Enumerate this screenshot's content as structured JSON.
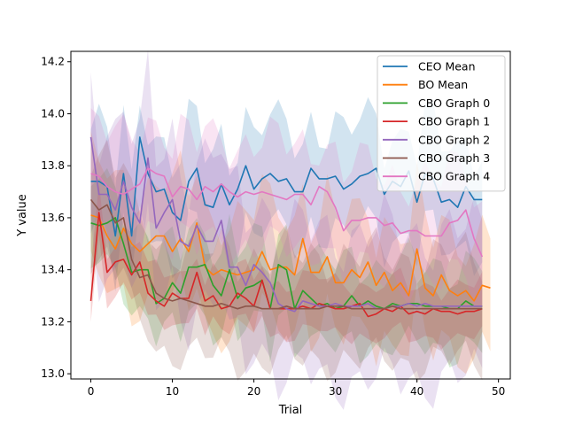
{
  "chart_data": {
    "type": "line",
    "title": "",
    "xlabel": "Trial",
    "ylabel": "Y value",
    "xlim": [
      -2.45,
      51.45
    ],
    "ylim": [
      12.98,
      14.24
    ],
    "xticks": [
      0,
      10,
      20,
      30,
      40,
      50
    ],
    "yticks": [
      13.0,
      13.2,
      13.4,
      13.6,
      13.8,
      14.0,
      14.2
    ],
    "ytick_labels": [
      "13.0",
      "13.2",
      "13.4",
      "13.6",
      "13.8",
      "14.0",
      "14.2"
    ],
    "grid": false,
    "legend_position": "upper right",
    "series": [
      {
        "name": "CEO Mean",
        "color": "#1f77b4",
        "x_start": 0,
        "values": [
          13.74,
          13.74,
          13.72,
          13.53,
          13.77,
          13.53,
          13.91,
          13.77,
          13.7,
          13.71,
          13.62,
          13.59,
          13.74,
          13.79,
          13.65,
          13.64,
          13.73,
          13.65,
          13.71,
          13.8,
          13.71,
          13.75,
          13.77,
          13.74,
          13.75,
          13.7,
          13.7,
          13.79,
          13.75,
          13.75,
          13.76,
          13.71,
          13.73,
          13.76,
          13.77,
          13.79,
          13.69,
          13.74,
          13.72,
          13.78,
          13.66,
          13.77,
          13.75,
          13.66,
          13.67,
          13.64,
          13.72,
          13.67,
          13.67
        ],
        "band_halfwidth": 0.2
      },
      {
        "name": "BO Mean",
        "color": "#ff7f0e",
        "x_start": 0,
        "values": [
          13.61,
          13.6,
          13.53,
          13.48,
          13.56,
          13.5,
          13.47,
          13.5,
          13.53,
          13.53,
          13.47,
          13.52,
          13.47,
          13.58,
          13.41,
          13.38,
          13.4,
          13.39,
          13.38,
          13.39,
          13.4,
          13.47,
          13.4,
          13.41,
          13.41,
          13.38,
          13.52,
          13.39,
          13.39,
          13.45,
          13.35,
          13.35,
          13.4,
          13.37,
          13.43,
          13.34,
          13.39,
          13.32,
          13.35,
          13.3,
          13.48,
          13.33,
          13.3,
          13.38,
          13.32,
          13.3,
          13.32,
          13.28,
          13.34,
          13.33
        ],
        "band_halfwidth": 0.22
      },
      {
        "name": "CBO Graph 0",
        "color": "#2ca02c",
        "x_start": 0,
        "values": [
          13.58,
          13.57,
          13.58,
          13.6,
          13.5,
          13.39,
          13.4,
          13.4,
          13.27,
          13.29,
          13.35,
          13.31,
          13.41,
          13.41,
          13.42,
          13.34,
          13.3,
          13.4,
          13.29,
          13.33,
          13.34,
          13.36,
          13.25,
          13.42,
          13.4,
          13.25,
          13.32,
          13.29,
          13.26,
          13.27,
          13.25,
          13.26,
          13.3,
          13.26,
          13.28,
          13.26,
          13.25,
          13.27,
          13.26,
          13.27,
          13.27,
          13.26,
          13.26,
          13.26,
          13.25,
          13.25,
          13.28,
          13.26,
          13.26
        ],
        "band_halfwidth": 0.16
      },
      {
        "name": "CBO Graph 1",
        "color": "#d62728",
        "x_start": 0,
        "values": [
          13.28,
          13.62,
          13.39,
          13.43,
          13.44,
          13.38,
          13.43,
          13.31,
          13.28,
          13.26,
          13.31,
          13.29,
          13.29,
          13.39,
          13.28,
          13.3,
          13.25,
          13.26,
          13.31,
          13.29,
          13.26,
          13.36,
          13.25,
          13.25,
          13.25,
          13.25,
          13.26,
          13.25,
          13.27,
          13.26,
          13.25,
          13.25,
          13.26,
          13.27,
          13.22,
          13.23,
          13.25,
          13.24,
          13.26,
          13.23,
          13.24,
          13.23,
          13.25,
          13.24,
          13.24,
          13.23,
          13.24,
          13.24,
          13.25
        ],
        "band_halfwidth": 0.1
      },
      {
        "name": "CBO Graph 2",
        "color": "#9467bd",
        "x_start": 0,
        "values": [
          13.91,
          13.69,
          13.69,
          13.63,
          13.74,
          13.64,
          13.58,
          13.83,
          13.56,
          13.62,
          13.67,
          13.51,
          13.49,
          13.57,
          13.51,
          13.51,
          13.59,
          13.41,
          13.41,
          13.34,
          13.42,
          13.39,
          13.35,
          13.27,
          13.25,
          13.24,
          13.28,
          13.27,
          13.26,
          13.26,
          13.27,
          13.26,
          13.26,
          13.26,
          13.27,
          13.25,
          13.25,
          13.26,
          13.26,
          13.27,
          13.26,
          13.27,
          13.26,
          13.26,
          13.26,
          13.26,
          13.26,
          13.26,
          13.26
        ],
        "band_halfwidth": 0.28
      },
      {
        "name": "CBO Graph 3",
        "color": "#8c564b",
        "x_start": 0,
        "values": [
          13.67,
          13.63,
          13.65,
          13.58,
          13.6,
          13.44,
          13.37,
          13.38,
          13.31,
          13.29,
          13.28,
          13.29,
          13.28,
          13.27,
          13.26,
          13.26,
          13.27,
          13.26,
          13.25,
          13.26,
          13.26,
          13.25,
          13.25,
          13.25,
          13.26,
          13.25,
          13.25,
          13.25,
          13.25,
          13.26,
          13.26,
          13.26,
          13.25,
          13.25,
          13.25,
          13.25,
          13.25,
          13.26,
          13.25,
          13.25,
          13.25,
          13.25,
          13.25,
          13.25,
          13.25,
          13.25,
          13.25,
          13.25,
          13.25
        ],
        "band_halfwidth": 0.2
      },
      {
        "name": "CBO Graph 4",
        "color": "#e377c2",
        "x_start": 0,
        "values": [
          13.77,
          13.76,
          13.72,
          13.7,
          13.69,
          13.71,
          13.73,
          13.79,
          13.77,
          13.76,
          13.68,
          13.72,
          13.71,
          13.67,
          13.72,
          13.7,
          13.73,
          13.7,
          13.68,
          13.7,
          13.69,
          13.7,
          13.69,
          13.68,
          13.67,
          13.69,
          13.69,
          13.65,
          13.72,
          13.7,
          13.64,
          13.55,
          13.59,
          13.59,
          13.6,
          13.6,
          13.57,
          13.58,
          13.54,
          13.55,
          13.55,
          13.53,
          13.53,
          13.53,
          13.58,
          13.59,
          13.63,
          13.52,
          13.45
        ],
        "band_halfwidth": 0.2
      }
    ]
  }
}
